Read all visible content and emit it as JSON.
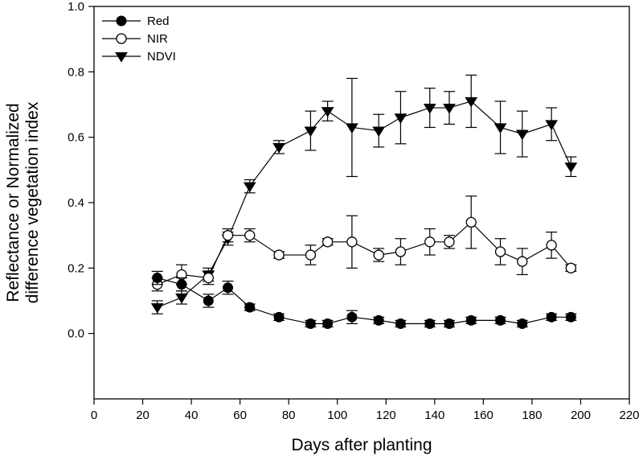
{
  "chart_data": {
    "type": "line",
    "title": "",
    "xlabel": "Days after planting",
    "ylabel_line1": "Reflectance or Normalized",
    "ylabel_line2": "difference vegetation index",
    "xlim": [
      0,
      220
    ],
    "ylim": [
      -0.2,
      1.0
    ],
    "xticks": [
      0,
      20,
      40,
      60,
      80,
      100,
      120,
      140,
      160,
      180,
      200,
      220
    ],
    "yticks": [
      0.0,
      0.2,
      0.4,
      0.6,
      0.8,
      1.0
    ],
    "ytick_labels": [
      "0.0",
      "0.2",
      "0.4",
      "0.6",
      "0.8",
      "1.0"
    ],
    "grid": false,
    "legend_position": "top-left",
    "x": [
      26,
      36,
      47,
      55,
      64,
      76,
      89,
      96,
      106,
      117,
      126,
      138,
      146,
      155,
      167,
      176,
      188,
      196
    ],
    "series": [
      {
        "name": "Red",
        "marker": "filled-circle",
        "values": [
          0.17,
          0.15,
          0.1,
          0.14,
          0.08,
          0.05,
          0.03,
          0.03,
          0.05,
          0.04,
          0.03,
          0.03,
          0.03,
          0.04,
          0.04,
          0.03,
          0.05,
          0.05
        ],
        "errors": [
          0.02,
          0.02,
          0.02,
          0.02,
          0.01,
          0.01,
          0.01,
          0.01,
          0.02,
          0.01,
          0.01,
          0.01,
          0.01,
          0.01,
          0.01,
          0.01,
          0.01,
          0.01
        ]
      },
      {
        "name": "NIR",
        "marker": "open-circle",
        "values": [
          0.15,
          0.18,
          0.17,
          0.3,
          0.3,
          0.24,
          0.24,
          0.28,
          0.28,
          0.24,
          0.25,
          0.28,
          0.28,
          0.34,
          0.25,
          0.22,
          0.27,
          0.2
        ],
        "errors": [
          0.02,
          0.03,
          0.02,
          0.02,
          0.02,
          0.01,
          0.03,
          0.01,
          0.08,
          0.02,
          0.04,
          0.04,
          0.02,
          0.08,
          0.04,
          0.04,
          0.04,
          0.01
        ]
      },
      {
        "name": "NDVI",
        "marker": "filled-triangle-down",
        "values": [
          0.08,
          0.11,
          0.18,
          0.29,
          0.45,
          0.57,
          0.62,
          0.68,
          0.63,
          0.62,
          0.66,
          0.69,
          0.69,
          0.71,
          0.63,
          0.61,
          0.64,
          0.51
        ],
        "errors": [
          0.02,
          0.02,
          0.02,
          0.02,
          0.02,
          0.02,
          0.06,
          0.03,
          0.15,
          0.05,
          0.08,
          0.06,
          0.05,
          0.08,
          0.08,
          0.07,
          0.05,
          0.03
        ]
      }
    ]
  }
}
